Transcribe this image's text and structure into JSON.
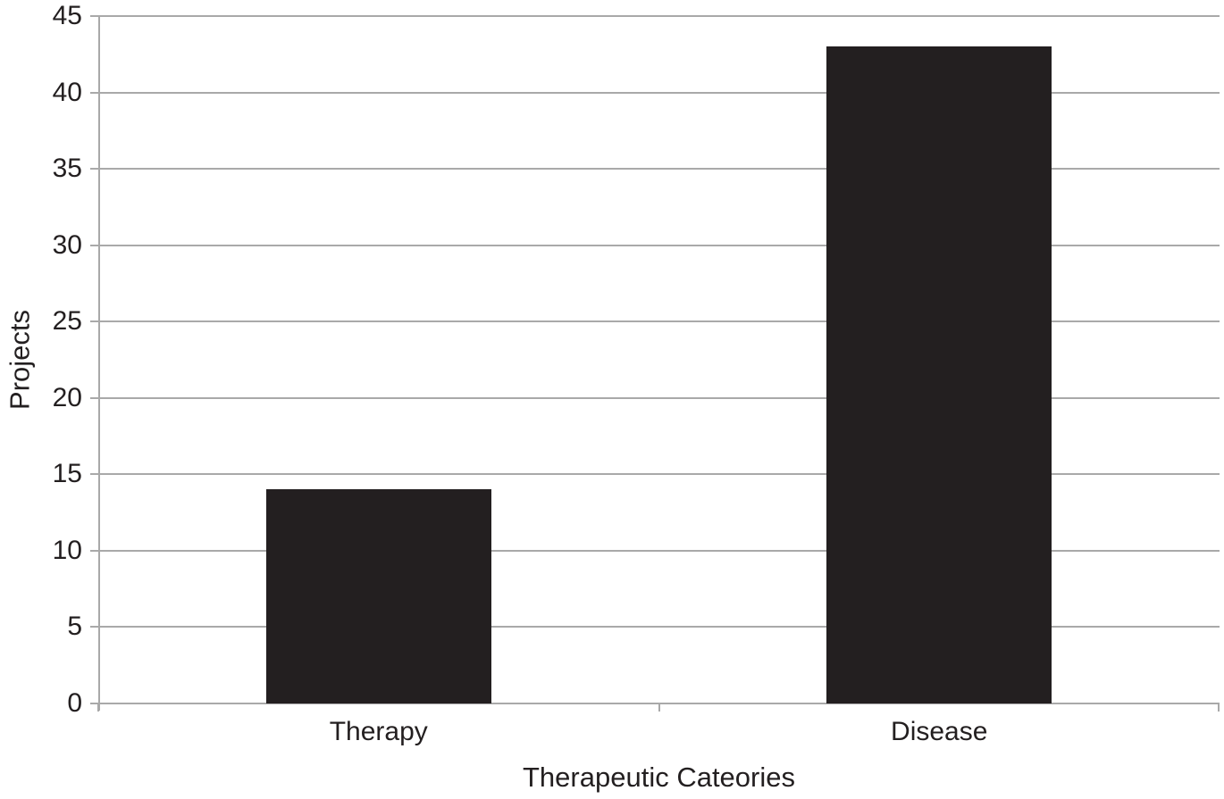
{
  "chart_data": {
    "type": "bar",
    "title": "",
    "categories": [
      "Therapy",
      "Disease"
    ],
    "values": [
      14,
      43
    ],
    "xlabel": "Therapeutic Cateories",
    "ylabel": "Projects",
    "ylim": [
      0,
      45
    ],
    "yticks": [
      0,
      5,
      10,
      15,
      20,
      25,
      30,
      35,
      40,
      45
    ],
    "grid": "horizontal",
    "legend": "none",
    "colors": {
      "bar": "#231f20",
      "gridline": "#a9a9a9",
      "text": "#231f20",
      "background": "#ffffff"
    }
  }
}
